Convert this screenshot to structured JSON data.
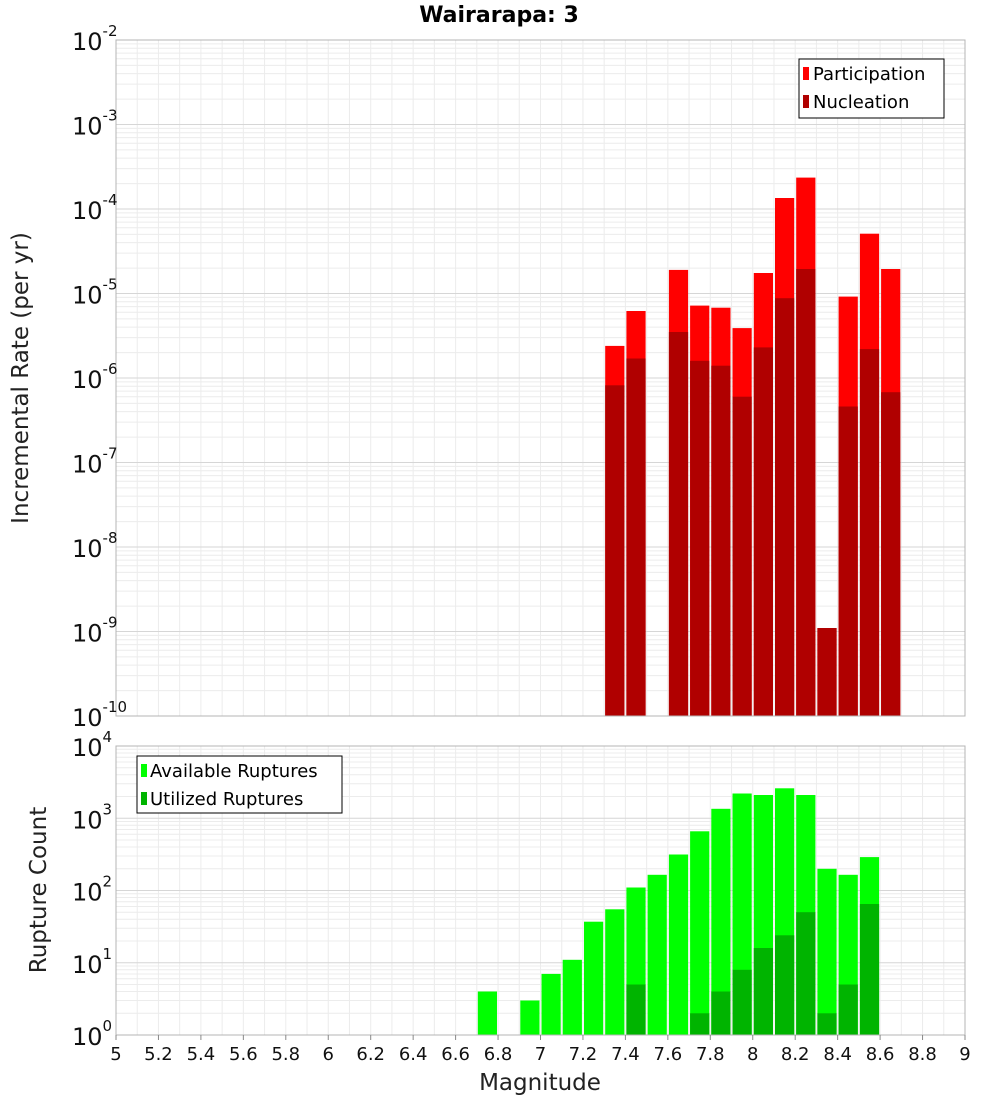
{
  "title": "Wairarapa: 3",
  "chart_data": [
    {
      "type": "bar",
      "ylabel": "Incremental Rate (per yr)",
      "yscale": "log",
      "ylim_exp": [
        -10,
        -2
      ],
      "xlim": [
        5,
        9
      ],
      "grid": true,
      "legend_position": "top-right",
      "legend": [
        "Participation",
        "Nucleation"
      ],
      "colors": [
        "#ff0000",
        "#b00000"
      ],
      "x": [
        7.35,
        7.45,
        7.65,
        7.75,
        7.85,
        7.95,
        8.05,
        8.15,
        8.25,
        8.35,
        8.45,
        8.55,
        8.65
      ],
      "series": [
        {
          "name": "Participation",
          "values": [
            2.4e-06,
            6.2e-06,
            1.9e-05,
            7.2e-06,
            6.8e-06,
            3.9e-06,
            1.75e-05,
            0.000135,
            0.000235,
            1.1e-09,
            9.2e-06,
            5.1e-05,
            1.95e-05
          ]
        },
        {
          "name": "Nucleation",
          "values": [
            8.2e-07,
            1.7e-06,
            3.5e-06,
            1.6e-06,
            1.4e-06,
            6e-07,
            2.3e-06,
            8.8e-06,
            1.95e-05,
            1.1e-09,
            4.6e-07,
            2.2e-06,
            6.8e-07
          ]
        }
      ]
    },
    {
      "type": "bar",
      "xlabel": "Magnitude",
      "ylabel": "Rupture Count",
      "yscale": "log",
      "ylim_exp": [
        0,
        4
      ],
      "xlim": [
        5,
        9
      ],
      "grid": true,
      "legend_position": "top-left",
      "legend": [
        "Available Ruptures",
        "Utilized Ruptures"
      ],
      "colors": [
        "#00ff00",
        "#00b400"
      ],
      "x_ticks": [
        "5",
        "5.2",
        "5.4",
        "5.6",
        "5.8",
        "6",
        "6.2",
        "6.4",
        "6.6",
        "6.8",
        "7",
        "7.2",
        "7.4",
        "7.6",
        "7.8",
        "8",
        "8.2",
        "8.4",
        "8.6",
        "8.8",
        "9"
      ],
      "x": [
        6.75,
        6.95,
        7.05,
        7.15,
        7.25,
        7.35,
        7.45,
        7.55,
        7.65,
        7.75,
        7.85,
        7.95,
        8.05,
        8.15,
        8.25,
        8.35,
        8.45,
        8.55,
        8.65
      ],
      "series": [
        {
          "name": "Available Ruptures",
          "values": [
            4,
            3,
            7,
            11,
            37,
            55,
            110,
            165,
            315,
            660,
            1350,
            2200,
            2100,
            2600,
            2100,
            200,
            165,
            290,
            0
          ]
        },
        {
          "name": "Utilized Ruptures",
          "values": [
            0,
            0,
            0,
            0,
            0,
            1,
            5,
            0,
            1,
            2,
            4,
            8,
            16,
            24,
            50,
            2,
            5,
            65,
            1
          ]
        }
      ]
    }
  ]
}
